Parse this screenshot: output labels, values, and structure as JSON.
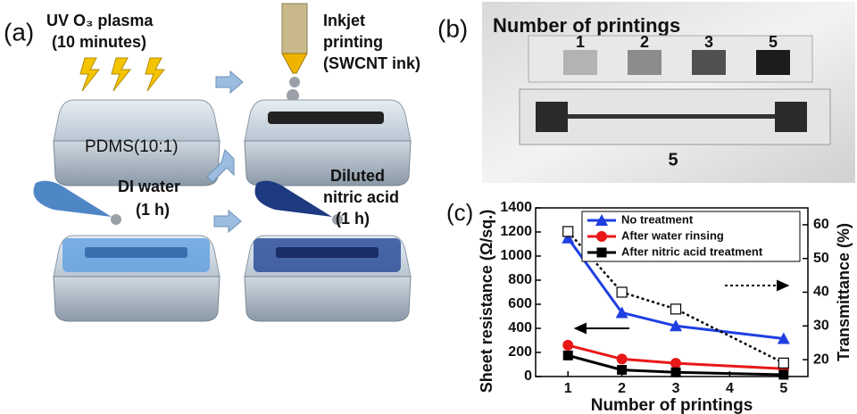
{
  "panel_a": {
    "label": "(a)",
    "uv_plasma": [
      "UV O₃ plasma",
      "(10 minutes)"
    ],
    "inkjet": [
      "Inkjet",
      "printing",
      "(SWCNT ink)"
    ],
    "substrate": "PDMS(10:1)",
    "water": [
      "DI water",
      "(1 h)"
    ],
    "acid": [
      "Diluted",
      "nitric acid",
      "(1 h)"
    ]
  },
  "panel_b": {
    "label": "(b)",
    "title": "Number of printings",
    "sample_labels": [
      "1",
      "2",
      "3",
      "5"
    ],
    "strip_label": "5"
  },
  "panel_c": {
    "label": "(c)"
  },
  "chart_data": {
    "type": "line",
    "x": [
      1,
      2,
      3,
      5
    ],
    "xlabel": "Number of printings",
    "ylabel": "Sheet resistance (Ω/sq.)",
    "y2label": "Transmittance (%)",
    "xlim": [
      0.4,
      5.45
    ],
    "xticks": [
      1,
      2,
      3,
      4,
      5
    ],
    "ylim": [
      0,
      1400
    ],
    "yticks": [
      0,
      200,
      400,
      600,
      800,
      1000,
      1200,
      1400
    ],
    "y2lim": [
      15,
      65
    ],
    "y2ticks": [
      20,
      30,
      40,
      50,
      60
    ],
    "series": [
      {
        "name": "No treatment",
        "color": "#1f3fe0",
        "marker": "triangle",
        "values": [
          1150,
          530,
          420,
          315
        ]
      },
      {
        "name": "After water rinsing",
        "color": "#e81818",
        "marker": "circle",
        "values": [
          260,
          145,
          110,
          65
        ]
      },
      {
        "name": "After nitric acid treatment",
        "color": "#000000",
        "marker": "square",
        "values": [
          175,
          55,
          35,
          15
        ]
      },
      {
        "color": "#000000",
        "marker": "open-square",
        "dashed": true,
        "axis": "y2",
        "values": [
          58,
          40,
          35,
          19
        ]
      }
    ]
  }
}
